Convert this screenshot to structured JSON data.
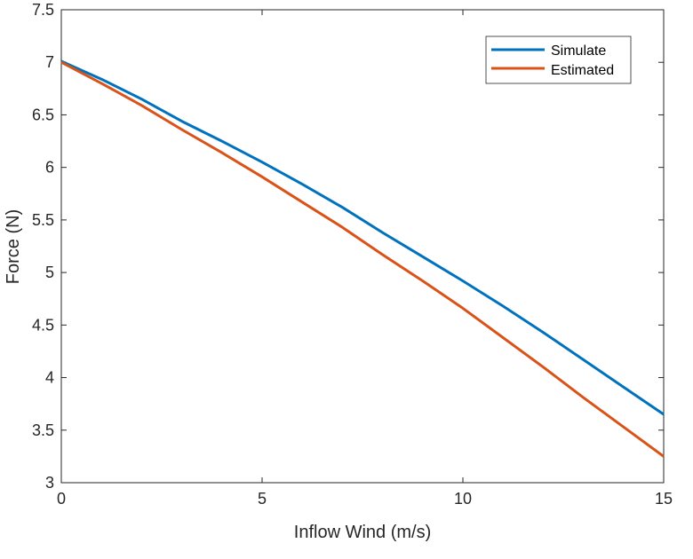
{
  "chart_data": {
    "type": "line",
    "title": "",
    "xlabel": "Inflow Wind (m/s)",
    "ylabel": "Force (N)",
    "xlim": [
      0,
      15
    ],
    "ylim": [
      3,
      7.5
    ],
    "xticks": [
      "0",
      "5",
      "10",
      "15"
    ],
    "yticks": [
      "3",
      "3.5",
      "4",
      "4.5",
      "5",
      "5.5",
      "6",
      "6.5",
      "7",
      "7.5"
    ],
    "grid": false,
    "legend_position": "top-right",
    "series": [
      {
        "name": "Simulate",
        "color": "#0072BD",
        "x": [
          0,
          1,
          2,
          3,
          4,
          5,
          6,
          7,
          8,
          9,
          10,
          11,
          12,
          13,
          14,
          15
        ],
        "y": [
          7.01,
          6.84,
          6.65,
          6.44,
          6.25,
          6.05,
          5.84,
          5.62,
          5.38,
          5.15,
          4.92,
          4.68,
          4.43,
          4.17,
          3.91,
          3.65
        ]
      },
      {
        "name": "Estimated",
        "color": "#D95319",
        "x": [
          0,
          1,
          2,
          3,
          4,
          5,
          6,
          7,
          8,
          9,
          10,
          11,
          12,
          13,
          14,
          15
        ],
        "y": [
          7.0,
          6.8,
          6.59,
          6.36,
          6.14,
          5.91,
          5.67,
          5.43,
          5.17,
          4.92,
          4.66,
          4.38,
          4.1,
          3.81,
          3.53,
          3.25
        ]
      }
    ]
  }
}
